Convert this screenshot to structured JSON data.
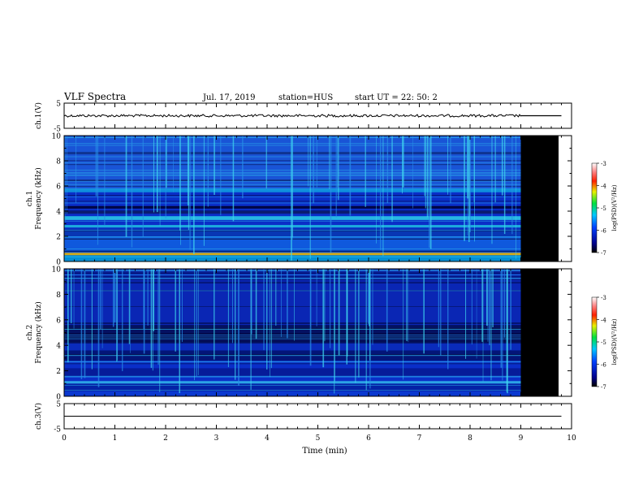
{
  "header": {
    "title": "VLF Spectra",
    "date": "Jul. 17, 2019",
    "station": "station=HUS",
    "start": "start UT =  22: 50: 2"
  },
  "chart_data": [
    {
      "type": "line",
      "id": "ch1-waveform",
      "ylabel": "ch.1(V)",
      "ylim": [
        -5,
        5
      ],
      "y_ticks": [
        "5",
        "-5"
      ],
      "xlim": [
        0,
        10
      ],
      "level": 0,
      "data_end_min": 9.0
    },
    {
      "type": "heatmap",
      "id": "ch1-spectrogram",
      "ylabel": "ch.1\nFrequency (kHz)",
      "ylim": [
        0,
        10
      ],
      "y_ticks": [
        "0",
        "2",
        "4",
        "6",
        "8",
        "10"
      ],
      "xlim": [
        0,
        10
      ],
      "data_end_min": 9.0,
      "colorbar": {
        "label": "log(PSD)(V²/Hz)",
        "range": [
          -7,
          -3
        ],
        "ticks": [
          "-3",
          "-4",
          "-5",
          "-6",
          "-7"
        ]
      }
    },
    {
      "type": "heatmap",
      "id": "ch2-spectrogram",
      "ylabel": "ch.2\nFrequency (kHz)",
      "ylim": [
        0,
        10
      ],
      "y_ticks": [
        "0",
        "2",
        "4",
        "6",
        "8",
        "10"
      ],
      "xlim": [
        0,
        10
      ],
      "data_end_min": 9.0,
      "colorbar": {
        "label": "log(PSD)(V²/Hz)",
        "range": [
          -7,
          -3
        ],
        "ticks": [
          "-3",
          "-4",
          "-5",
          "-6",
          "-7"
        ]
      }
    },
    {
      "type": "line",
      "id": "ch3-waveform",
      "ylabel": "ch.3(V)",
      "ylim": [
        -5,
        5
      ],
      "y_ticks": [
        "5",
        "-5"
      ],
      "xlim": [
        0,
        10
      ],
      "level": 0,
      "data_end_min": 9.8
    }
  ],
  "x_axis": {
    "label": "Time (min)",
    "ticks": [
      "0",
      "1",
      "2",
      "3",
      "4",
      "5",
      "6",
      "7",
      "8",
      "9",
      "10"
    ]
  },
  "colors": {
    "background": "#ffffff",
    "axis": "#000000",
    "nodata": "#000000"
  }
}
